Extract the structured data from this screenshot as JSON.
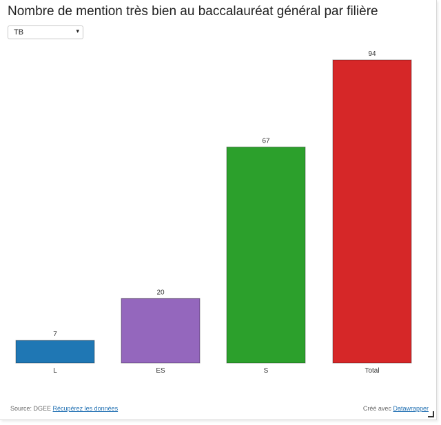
{
  "title": "Nombre de mention très bien au baccalauréat général par filière",
  "dropdown": {
    "selected": "TB",
    "caret": "▾"
  },
  "chart_data": {
    "type": "bar",
    "title": "Nombre de mention très bien au baccalauréat général par filière",
    "categories": [
      "L",
      "ES",
      "S",
      "Total"
    ],
    "values": [
      7,
      20,
      67,
      94
    ],
    "colors": [
      "#1f77b4",
      "#9467bd",
      "#2ca02c",
      "#d62728"
    ],
    "ylim": [
      0,
      94
    ],
    "grid": false,
    "legend": "none"
  },
  "footer": {
    "source_prefix": "Source: DGEE",
    "source_link": "Récupérez les données",
    "credit_prefix": "Créé avec",
    "credit_link": "Datawrapper"
  }
}
